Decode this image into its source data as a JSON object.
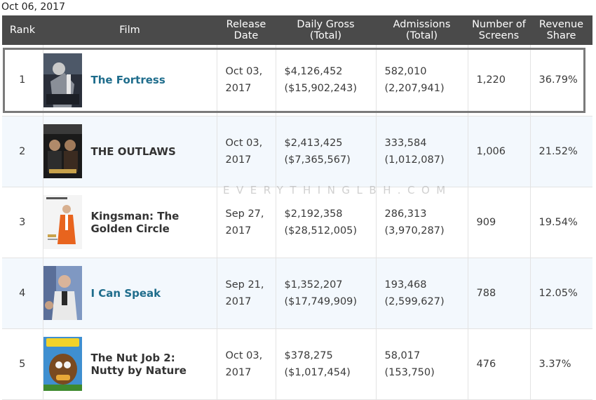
{
  "date": "Oct 06, 2017",
  "headers": {
    "rank": "Rank",
    "film": "Film",
    "release_1": "Release",
    "release_2": "Date",
    "gross_1": "Daily Gross",
    "gross_2": "(Total)",
    "admissions_1": "Admissions",
    "admissions_2": "(Total)",
    "screens_1": "Number of",
    "screens_2": "Screens",
    "share_1": "Revenue",
    "share_2": "Share"
  },
  "rows": [
    {
      "rank": "1",
      "title": "The Fortress",
      "release_1": "Oct 03,",
      "release_2": "2017",
      "gross": "$4,126,452",
      "gross_total": "($15,902,243)",
      "admissions": "582,010",
      "admissions_total": "(2,207,941)",
      "screens": "1,220",
      "share": "36.79%"
    },
    {
      "rank": "2",
      "title": "THE OUTLAWS",
      "release_1": "Oct 03,",
      "release_2": "2017",
      "gross": "$2,413,425",
      "gross_total": "($7,365,567)",
      "admissions": "333,584",
      "admissions_total": "(1,012,087)",
      "screens": "1,006",
      "share": "21.52%"
    },
    {
      "rank": "3",
      "title_1": "Kingsman: The",
      "title_2": "Golden Circle",
      "release_1": "Sep 27,",
      "release_2": "2017",
      "gross": "$2,192,358",
      "gross_total": "($28,512,005)",
      "admissions": "286,313",
      "admissions_total": "(3,970,287)",
      "screens": "909",
      "share": "19.54%"
    },
    {
      "rank": "4",
      "title": "I Can Speak",
      "release_1": "Sep 21,",
      "release_2": "2017",
      "gross": "$1,352,207",
      "gross_total": "($17,749,909)",
      "admissions": "193,468",
      "admissions_total": "(2,599,627)",
      "screens": "788",
      "share": "12.05%"
    },
    {
      "rank": "5",
      "title_1": "The Nut Job 2:",
      "title_2": "Nutty by Nature",
      "release_1": "Oct 03,",
      "release_2": "2017",
      "gross": "$378,275",
      "gross_total": "($1,017,454)",
      "admissions": "58,017",
      "admissions_total": "(153,750)",
      "screens": "476",
      "share": "3.37%"
    }
  ],
  "watermark": "EVERYTHINGLBH.COM",
  "colors": {
    "header_bg": "#4a4a4a",
    "link": "#1f6d8c",
    "alt_row": "#f3f8fd"
  }
}
